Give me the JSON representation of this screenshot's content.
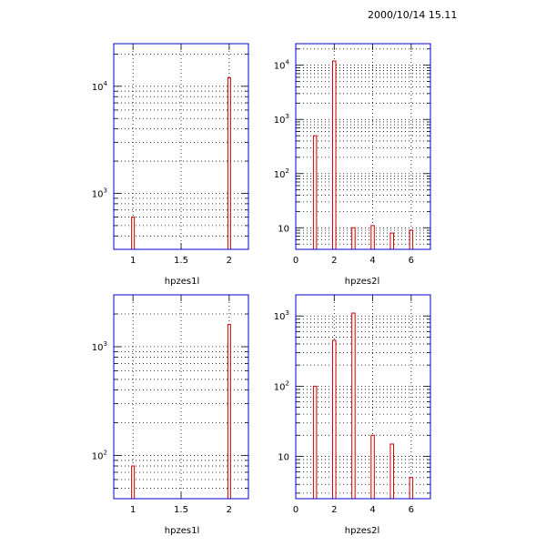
{
  "timestamp": "2000/10/14 15.11",
  "colors": {
    "frame": "#0000cc",
    "bar": "#cc0000",
    "grid": "#000000"
  },
  "chart_data": [
    {
      "type": "bar",
      "xlabel": "hpzes1l",
      "xlim": [
        0.8,
        2.2
      ],
      "ylim": [
        300,
        25000
      ],
      "yscale": "log",
      "xticks": [
        1,
        1.5,
        2
      ],
      "xtick_labels": [
        "1",
        "1.5",
        "2"
      ],
      "yticks": [
        1000,
        10000
      ],
      "ytick_labels": [
        {
          "base": "10",
          "exp": "3"
        },
        {
          "base": "10",
          "exp": "4"
        }
      ],
      "grid": true,
      "x": [
        1,
        2
      ],
      "values": [
        600,
        12000
      ]
    },
    {
      "type": "bar",
      "xlabel": "hpzes2l",
      "xlim": [
        0,
        7
      ],
      "ylim": [
        4,
        25000
      ],
      "yscale": "log",
      "xticks": [
        0,
        2,
        4,
        6
      ],
      "xtick_labels": [
        "0",
        "2",
        "4",
        "6"
      ],
      "yticks": [
        10,
        100,
        1000,
        10000
      ],
      "ytick_labels": [
        {
          "base": "10",
          "exp": ""
        },
        {
          "base": "10",
          "exp": "2"
        },
        {
          "base": "10",
          "exp": "3"
        },
        {
          "base": "10",
          "exp": "4"
        }
      ],
      "grid": true,
      "x": [
        1,
        2,
        3,
        4,
        5,
        6
      ],
      "values": [
        500,
        12000,
        10,
        11,
        8,
        9
      ]
    },
    {
      "type": "bar",
      "xlabel": "hpzes1l",
      "xlim": [
        0.8,
        2.2
      ],
      "ylim": [
        40,
        3000
      ],
      "yscale": "log",
      "xticks": [
        1,
        1.5,
        2
      ],
      "xtick_labels": [
        "1",
        "1.5",
        "2"
      ],
      "yticks": [
        100,
        1000
      ],
      "ytick_labels": [
        {
          "base": "10",
          "exp": "2"
        },
        {
          "base": "10",
          "exp": "3"
        }
      ],
      "grid": true,
      "x": [
        1,
        2
      ],
      "values": [
        80,
        1600
      ]
    },
    {
      "type": "bar",
      "xlabel": "hpzes2l",
      "xlim": [
        0,
        7
      ],
      "ylim": [
        2.5,
        2000
      ],
      "yscale": "log",
      "xticks": [
        0,
        2,
        4,
        6
      ],
      "xtick_labels": [
        "0",
        "2",
        "4",
        "6"
      ],
      "yticks": [
        10,
        100,
        1000
      ],
      "ytick_labels": [
        {
          "base": "10",
          "exp": ""
        },
        {
          "base": "10",
          "exp": "2"
        },
        {
          "base": "10",
          "exp": "3"
        }
      ],
      "grid": true,
      "x": [
        1,
        2,
        3,
        4,
        5,
        6
      ],
      "values": [
        100,
        450,
        1100,
        20,
        15,
        5
      ]
    }
  ]
}
